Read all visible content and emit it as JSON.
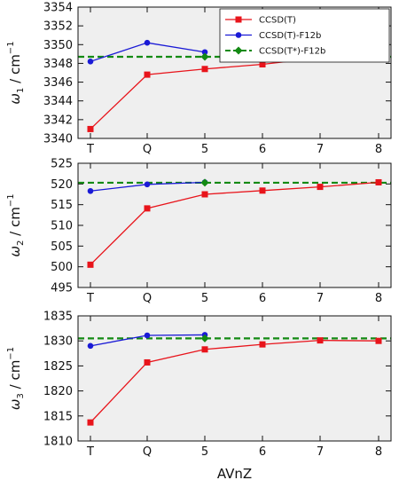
{
  "chart_data": [
    {
      "type": "line",
      "ylabel_symbol": "ω",
      "ylabel_sub": "1",
      "ylabel_unit": " / cm",
      "ylabel_sup": "−1",
      "categories": [
        "T",
        "Q",
        "5",
        "6",
        "7",
        "8"
      ],
      "ylim": [
        3340,
        3354
      ],
      "yticks": [
        3340,
        3342,
        3344,
        3346,
        3348,
        3350,
        3352,
        3354
      ],
      "grid": false,
      "legend_position": "top-right",
      "series": [
        {
          "name": "CCSD(T)",
          "color": "#e8141b",
          "marker": "square",
          "values": [
            3341.0,
            3346.8,
            3347.4,
            3347.9,
            3348.6,
            3349.2
          ]
        },
        {
          "name": "CCSD(T)-F12b",
          "color": "#1a1ad6",
          "marker": "circle",
          "values": [
            3348.2,
            3350.2,
            3349.2,
            null,
            null,
            null
          ]
        },
        {
          "name": "CCSD(T*)-F12b",
          "color": "#138a13",
          "marker": "diamond",
          "dashed_reference": true,
          "values": [
            null,
            null,
            3348.7,
            null,
            null,
            null
          ],
          "reference": 3348.7
        }
      ]
    },
    {
      "type": "line",
      "ylabel_symbol": "ω",
      "ylabel_sub": "2",
      "ylabel_unit": " / cm",
      "ylabel_sup": "−1",
      "categories": [
        "T",
        "Q",
        "5",
        "6",
        "7",
        "8"
      ],
      "ylim": [
        495,
        525
      ],
      "yticks": [
        495,
        500,
        505,
        510,
        515,
        520,
        525
      ],
      "grid": false,
      "series": [
        {
          "name": "CCSD(T)",
          "color": "#e8141b",
          "marker": "square",
          "values": [
            500.5,
            514.1,
            517.5,
            518.4,
            519.3,
            520.4
          ]
        },
        {
          "name": "CCSD(T)-F12b",
          "color": "#1a1ad6",
          "marker": "circle",
          "values": [
            518.3,
            519.9,
            520.4,
            null,
            null,
            null
          ]
        },
        {
          "name": "CCSD(T*)-F12b",
          "color": "#138a13",
          "marker": "diamond",
          "dashed_reference": true,
          "values": [
            null,
            null,
            520.3,
            null,
            null,
            null
          ],
          "reference": 520.3
        }
      ]
    },
    {
      "type": "line",
      "ylabel_symbol": "ω",
      "ylabel_sub": "3",
      "ylabel_unit": " / cm",
      "ylabel_sup": "−1",
      "categories": [
        "T",
        "Q",
        "5",
        "6",
        "7",
        "8"
      ],
      "xlabel": "AVnZ",
      "ylim": [
        1810,
        1835
      ],
      "yticks": [
        1810,
        1815,
        1820,
        1825,
        1830,
        1835
      ],
      "grid": false,
      "series": [
        {
          "name": "CCSD(T)",
          "color": "#e8141b",
          "marker": "square",
          "values": [
            1813.7,
            1825.7,
            1828.3,
            1829.3,
            1830.1,
            1830.0
          ]
        },
        {
          "name": "CCSD(T)-F12b",
          "color": "#1a1ad6",
          "marker": "circle",
          "values": [
            1829.0,
            1831.1,
            1831.2,
            null,
            null,
            null
          ]
        },
        {
          "name": "CCSD(T*)-F12b",
          "color": "#138a13",
          "marker": "diamond",
          "dashed_reference": true,
          "values": [
            null,
            null,
            1830.5,
            null,
            null,
            null
          ],
          "reference": 1830.5
        }
      ]
    }
  ],
  "legend": {
    "entries": [
      "CCSD(T)",
      "CCSD(T)-F12b",
      "CCSD(T*)-F12b"
    ]
  },
  "colors": {
    "panel_background": "#efefef",
    "ccsdt": "#e8141b",
    "f12b": "#1a1ad6",
    "f12b_star": "#138a13"
  }
}
